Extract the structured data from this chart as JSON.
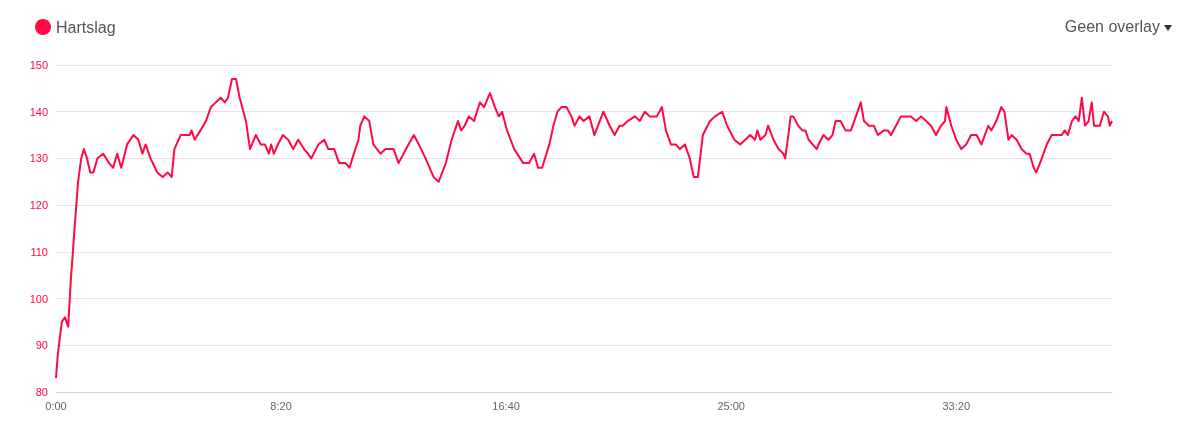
{
  "chart_data": {
    "type": "line",
    "legend": "top left",
    "grid": "y",
    "marker": "none",
    "line_style": "solid",
    "annotations": [
      "Geen overlay"
    ],
    "xlim": [
      0,
      2346
    ],
    "xticks": [
      {
        "value": 0,
        "label": "0:00"
      },
      {
        "value": 500,
        "label": "8:20"
      },
      {
        "value": 1000,
        "label": "16:40"
      },
      {
        "value": 1500,
        "label": "25:00"
      },
      {
        "value": 2000,
        "label": "33:20"
      }
    ],
    "ylim": [
      80,
      150
    ],
    "yticks": [
      80,
      90,
      100,
      110,
      120,
      130,
      140,
      150
    ],
    "series": [
      {
        "name": "Hartslag",
        "color": "#ff0a47",
        "x": [
          0,
          4,
          9,
          13,
          20,
          27,
          33,
          42,
          49,
          56,
          62,
          69,
          76,
          83,
          92,
          105,
          118,
          127,
          136,
          145,
          158,
          172,
          183,
          192,
          199,
          210,
          225,
          237,
          248,
          257,
          263,
          277,
          297,
          301,
          308,
          321,
          333,
          344,
          355,
          366,
          375,
          382,
          391,
          400,
          408,
          422,
          431,
          444,
          455,
          464,
          473,
          478,
          484,
          493,
          504,
          516,
          527,
          538,
          551,
          560,
          567,
          583,
          596,
          605,
          618,
          629,
          643,
          652,
          665,
          672,
          676,
          685,
          696,
          705,
          721,
          732,
          750,
          761,
          772,
          783,
          795,
          806,
          821,
          839,
          850,
          866,
          879,
          893,
          900,
          908,
          917,
          929,
          935,
          942,
          951,
          964,
          975,
          984,
          991,
          1002,
          1018,
          1038,
          1051,
          1062,
          1071,
          1080,
          1096,
          1105,
          1114,
          1123,
          1134,
          1145,
          1152,
          1163,
          1172,
          1185,
          1196,
          1208,
          1216,
          1230,
          1241,
          1252,
          1259,
          1270,
          1286,
          1297,
          1308,
          1319,
          1335,
          1346,
          1355,
          1366,
          1377,
          1386,
          1397,
          1408,
          1417,
          1426,
          1437,
          1453,
          1464,
          1480,
          1491,
          1507,
          1520,
          1531,
          1542,
          1553,
          1558,
          1565,
          1576,
          1582,
          1594,
          1605,
          1616,
          1620,
          1627,
          1632,
          1638,
          1649,
          1658,
          1665,
          1672,
          1681,
          1690,
          1694,
          1705,
          1716,
          1725,
          1732,
          1743,
          1754,
          1766,
          1777,
          1788,
          1795,
          1806,
          1817,
          1826,
          1839,
          1848,
          1855,
          1877,
          1899,
          1911,
          1922,
          1933,
          1944,
          1955,
          1966,
          1975,
          1978,
          1989,
          2000,
          2011,
          2022,
          2033,
          2045,
          2056,
          2071,
          2078,
          2089,
          2100,
          2107,
          2116,
          2123,
          2134,
          2145,
          2156,
          2163,
          2172,
          2178,
          2190,
          2201,
          2212,
          2223,
          2234,
          2241,
          2248,
          2257,
          2265,
          2272,
          2279,
          2286,
          2294,
          2301,
          2306,
          2319,
          2328,
          2337,
          2341,
          2346
        ],
        "values": [
          83,
          88,
          92,
          95,
          96,
          94,
          104,
          116,
          125,
          130,
          132,
          130,
          127,
          127,
          130,
          131,
          129,
          128,
          131,
          128,
          133,
          135,
          134,
          131,
          133,
          130,
          127,
          126,
          127,
          126,
          132,
          135,
          135,
          136,
          134,
          136,
          138,
          141,
          142,
          143,
          142,
          143,
          147,
          147,
          143,
          138,
          132,
          135,
          133,
          133,
          131,
          133,
          131,
          133,
          135,
          134,
          132,
          134,
          132,
          131,
          130,
          133,
          134,
          132,
          132,
          129,
          129,
          128,
          132,
          134,
          137,
          139,
          138,
          133,
          131,
          132,
          132,
          129,
          131,
          133,
          135,
          133,
          130,
          126,
          125,
          129,
          134,
          138,
          136,
          137,
          139,
          138,
          140,
          142,
          141,
          144,
          141,
          139,
          140,
          136,
          132,
          129,
          129,
          131,
          128,
          128,
          133,
          137,
          140,
          141,
          141,
          139,
          137,
          139,
          138,
          139,
          135,
          138,
          140,
          137,
          135,
          137,
          137,
          138,
          139,
          138,
          140,
          139,
          139,
          141,
          136,
          133,
          133,
          132,
          133,
          130,
          126,
          126,
          135,
          138,
          139,
          140,
          137,
          134,
          133,
          134,
          135,
          134,
          136,
          134,
          135,
          137,
          134,
          132,
          131,
          130,
          135,
          139,
          139,
          137,
          136,
          136,
          134,
          133,
          132,
          133,
          135,
          134,
          135,
          138,
          138,
          136,
          136,
          139,
          142,
          138,
          137,
          137,
          135,
          136,
          136,
          135,
          139,
          139,
          138,
          139,
          138,
          137,
          135,
          137,
          138,
          141,
          137,
          134,
          132,
          133,
          135,
          135,
          133,
          137,
          136,
          138,
          141,
          140,
          134,
          135,
          134,
          132,
          131,
          131,
          128,
          127,
          130,
          133,
          135,
          135,
          135,
          136,
          135,
          138,
          139,
          138,
          143,
          137,
          138,
          142,
          137,
          137,
          140,
          139,
          137,
          138
        ]
      }
    ]
  }
}
